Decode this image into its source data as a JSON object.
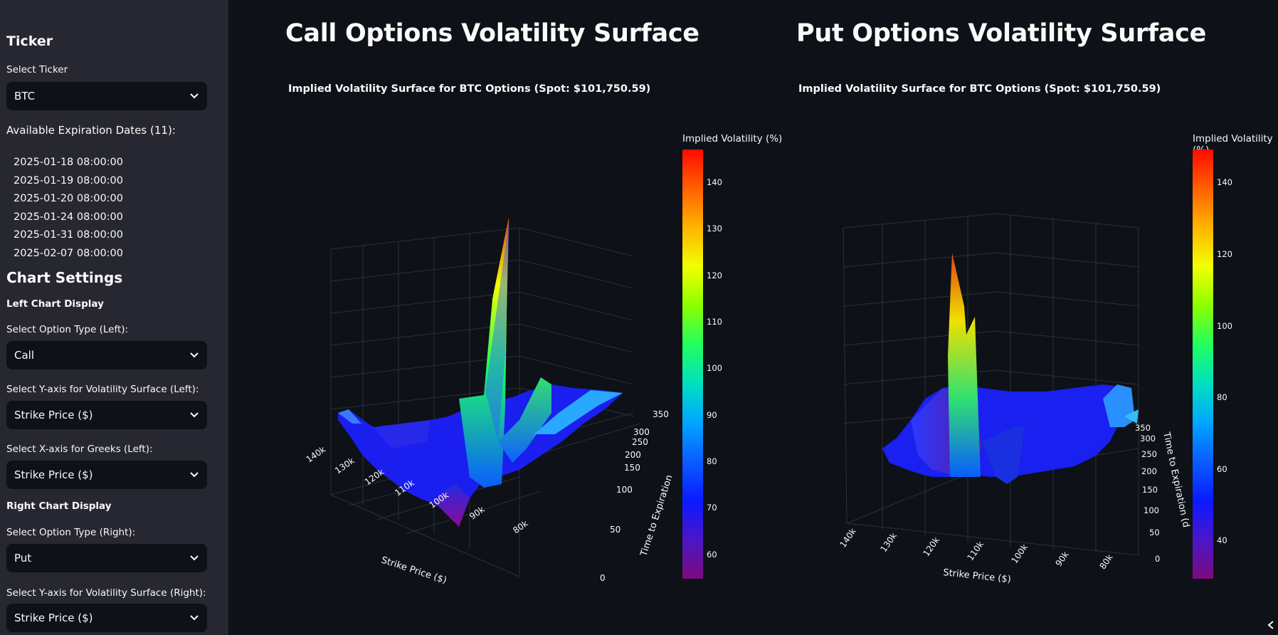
{
  "sidebar": {
    "ticker_heading": "Ticker",
    "select_ticker_label": "Select Ticker",
    "ticker_value": "BTC",
    "expiration_heading": "Available Expiration Dates (11):",
    "expiration_dates": [
      "2025-01-18 08:00:00",
      "2025-01-19 08:00:00",
      "2025-01-20 08:00:00",
      "2025-01-24 08:00:00",
      "2025-01-31 08:00:00",
      "2025-02-07 08:00:00"
    ],
    "chart_settings_heading": "Chart Settings",
    "left_display_heading": "Left Chart Display",
    "left_option_type_label": "Select Option Type (Left):",
    "left_option_type_value": "Call",
    "left_yaxis_label": "Select Y-axis for Volatility Surface (Left):",
    "left_yaxis_value": "Strike Price ($)",
    "left_xaxis_label": "Select X-axis for Greeks (Left):",
    "left_xaxis_value": "Strike Price ($)",
    "right_display_heading": "Right Chart Display",
    "right_option_type_label": "Select Option Type (Right):",
    "right_option_type_value": "Put",
    "right_yaxis_label": "Select Y-axis for Volatility Surface (Right):",
    "right_yaxis_value": "Strike Price ($)"
  },
  "main": {
    "left_title": "Call Options Volatility Surface",
    "right_title": "Put Options Volatility Surface"
  },
  "icons": {
    "select_chevron": "chevron-down-icon",
    "sidebar_collapse": "chevron-left-icon"
  },
  "colors": {
    "background": "#0e1117",
    "sidebar": "#262730",
    "select_bg": "#0e1117",
    "colorscale": [
      "#7b0a7a",
      "#4b16c8",
      "#0a1aff",
      "#0a5dff",
      "#00a6ff",
      "#00e0c0",
      "#20ff60",
      "#8cff00",
      "#f2ff00",
      "#ffb400",
      "#ff6000",
      "#ff0a00"
    ]
  },
  "chart_data": [
    {
      "type": "surface",
      "title": "Implied Volatility Surface for BTC Options (Spot: $101,750.59)",
      "colorbar_title": "Implied Volatility (%)",
      "colorbar_ticks": [
        "140",
        "130",
        "120",
        "110",
        "100",
        "90",
        "80",
        "70",
        "60"
      ],
      "colorbar_range": [
        55,
        147
      ],
      "xlabel": "Strike Price ($)",
      "xticks": [
        "140k",
        "130k",
        "120k",
        "110k",
        "100k",
        "90k",
        "80k"
      ],
      "ylabel": "Time to Expiration",
      "yticks": [
        "0",
        "50",
        "100",
        "150",
        "200",
        "250",
        "300",
        "350"
      ]
    },
    {
      "type": "surface",
      "title": "Implied Volatility Surface for BTC Options (Spot: $101,750.59)",
      "colorbar_title": "Implied Volatility (%)",
      "colorbar_ticks": [
        "140",
        "120",
        "100",
        "80",
        "60",
        "40"
      ],
      "colorbar_range": [
        29,
        148
      ],
      "xlabel": "Strike Price ($)",
      "xticks": [
        "140k",
        "130k",
        "120k",
        "110k",
        "100k",
        "90k",
        "80k"
      ],
      "ylabel": "Time to Expiration (d",
      "yticks": [
        "0",
        "50",
        "100",
        "150",
        "200",
        "250",
        "300",
        "350"
      ]
    }
  ]
}
